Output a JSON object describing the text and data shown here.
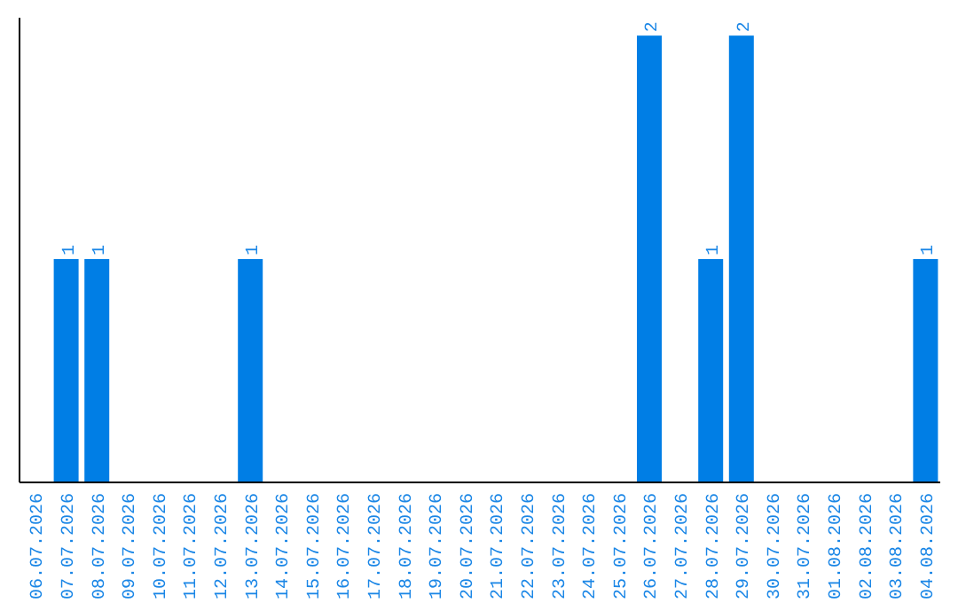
{
  "chart_data": {
    "type": "bar",
    "categories": [
      "06.07.2026",
      "07.07.2026",
      "08.07.2026",
      "09.07.2026",
      "10.07.2026",
      "11.07.2026",
      "12.07.2026",
      "13.07.2026",
      "14.07.2026",
      "15.07.2026",
      "16.07.2026",
      "17.07.2026",
      "18.07.2026",
      "19.07.2026",
      "20.07.2026",
      "21.07.2026",
      "22.07.2026",
      "23.07.2026",
      "24.07.2026",
      "25.07.2026",
      "26.07.2026",
      "27.07.2026",
      "28.07.2026",
      "29.07.2026",
      "30.07.2026",
      "31.07.2026",
      "01.08.2026",
      "02.08.2026",
      "03.08.2026",
      "04.08.2026"
    ],
    "values": [
      0,
      1,
      1,
      0,
      0,
      0,
      0,
      1,
      0,
      0,
      0,
      0,
      0,
      0,
      0,
      0,
      0,
      0,
      0,
      0,
      2,
      0,
      1,
      2,
      0,
      0,
      0,
      0,
      0,
      1
    ],
    "value_labels": [
      null,
      "1",
      "1",
      null,
      null,
      null,
      null,
      "1",
      null,
      null,
      null,
      null,
      null,
      null,
      null,
      null,
      null,
      null,
      null,
      null,
      "2",
      null,
      "1",
      "2",
      null,
      null,
      null,
      null,
      null,
      "1"
    ],
    "color": "#007ee5",
    "ylim": [
      0,
      2.08
    ],
    "tick_labels": "x",
    "grid": false,
    "legend": false
  }
}
